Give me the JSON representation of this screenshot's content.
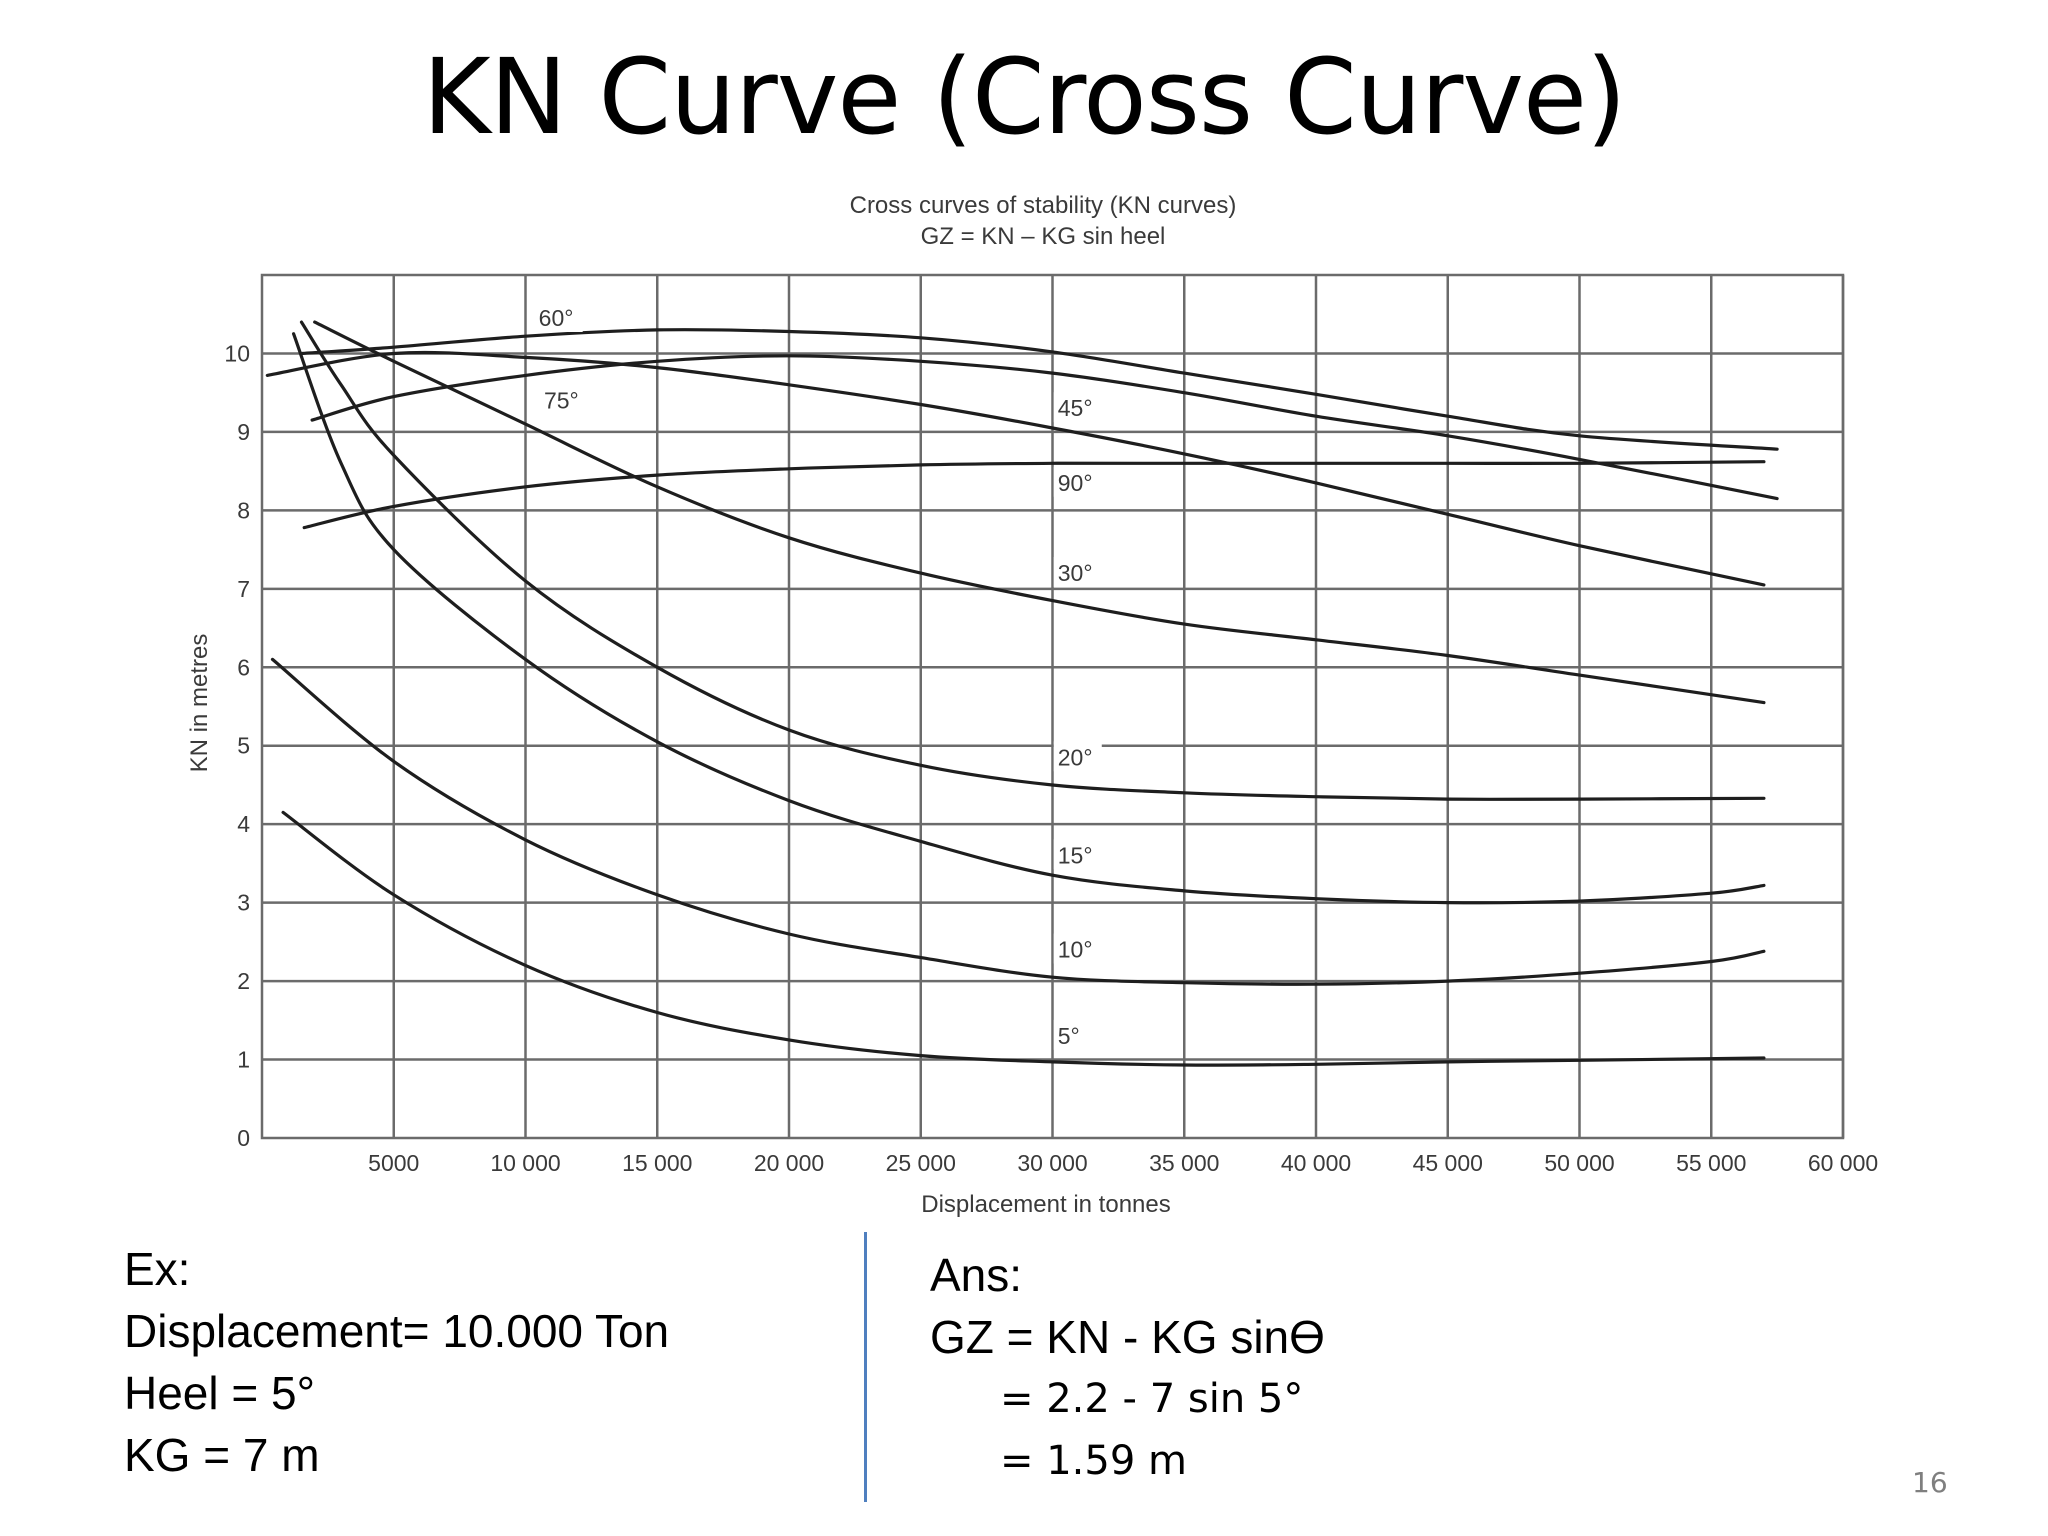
{
  "slide": {
    "title": "KN Curve (Cross Curve)",
    "page_number": "16"
  },
  "example": {
    "heading": "Ex:",
    "lines": [
      "Displacement= 10.000 Ton",
      "Heel = 5°",
      "KG = 7 m"
    ]
  },
  "answer": {
    "heading": "Ans:",
    "formula": "GZ = KN - KG sinϴ",
    "steps": [
      "= 2.2 - 7 sin 5°",
      "= 1.59 m"
    ]
  },
  "colors": {
    "grid": "#6b6b6b",
    "curve": "#1e1e1e",
    "text": "#3a3a3a",
    "divider": "#4f7fbf"
  },
  "chart_data": {
    "type": "line",
    "title": "Cross curves of stability (KN curves)",
    "subtitle": "GZ = KN – KG sin heel",
    "xlabel": "Displacement in tonnes",
    "ylabel": "KN in metres",
    "xlim": [
      0,
      60000
    ],
    "ylim": [
      0,
      11
    ],
    "x_ticks": [
      5000,
      10000,
      15000,
      20000,
      25000,
      30000,
      35000,
      40000,
      45000,
      50000,
      55000,
      60000
    ],
    "x_tick_labels": [
      "5000",
      "10 000",
      "15 000",
      "20 000",
      "25 000",
      "30 000",
      "35 000",
      "40 000",
      "45 000",
      "50 000",
      "55 000",
      "60 000"
    ],
    "y_ticks": [
      0,
      1,
      2,
      3,
      4,
      5,
      6,
      7,
      8,
      9,
      10
    ],
    "y_tick_labels": [
      "0",
      "1",
      "2",
      "3",
      "4",
      "5",
      "6",
      "7",
      "8",
      "9",
      "10"
    ],
    "grid": true,
    "series": [
      {
        "name": "5°",
        "label_at": [
          30200,
          1.2
        ],
        "points": [
          [
            800,
            4.15
          ],
          [
            5000,
            3.1
          ],
          [
            10000,
            2.2
          ],
          [
            15000,
            1.6
          ],
          [
            20000,
            1.25
          ],
          [
            25000,
            1.05
          ],
          [
            30000,
            0.97
          ],
          [
            35000,
            0.93
          ],
          [
            40000,
            0.94
          ],
          [
            45000,
            0.97
          ],
          [
            50000,
            0.99
          ],
          [
            57000,
            1.02
          ]
        ]
      },
      {
        "name": "10°",
        "label_at": [
          30200,
          2.3
        ],
        "points": [
          [
            400,
            6.1
          ],
          [
            5000,
            4.8
          ],
          [
            10000,
            3.8
          ],
          [
            15000,
            3.1
          ],
          [
            20000,
            2.6
          ],
          [
            25000,
            2.3
          ],
          [
            30000,
            2.05
          ],
          [
            35000,
            1.98
          ],
          [
            40000,
            1.96
          ],
          [
            45000,
            2.0
          ],
          [
            50000,
            2.1
          ],
          [
            55000,
            2.25
          ],
          [
            57000,
            2.38
          ]
        ]
      },
      {
        "name": "15°",
        "label_at": [
          30200,
          3.5
        ],
        "points": [
          [
            1200,
            10.25
          ],
          [
            3000,
            8.6
          ],
          [
            5000,
            7.5
          ],
          [
            10000,
            6.1
          ],
          [
            15000,
            5.05
          ],
          [
            20000,
            4.3
          ],
          [
            25000,
            3.78
          ],
          [
            30000,
            3.35
          ],
          [
            35000,
            3.15
          ],
          [
            40000,
            3.05
          ],
          [
            45000,
            3.0
          ],
          [
            50000,
            3.02
          ],
          [
            55000,
            3.12
          ],
          [
            57000,
            3.22
          ]
        ]
      },
      {
        "name": "20°",
        "label_at": [
          30200,
          4.75
        ],
        "points": [
          [
            1500,
            10.4
          ],
          [
            3000,
            9.6
          ],
          [
            5000,
            8.7
          ],
          [
            10000,
            7.1
          ],
          [
            15000,
            6.0
          ],
          [
            20000,
            5.2
          ],
          [
            25000,
            4.75
          ],
          [
            30000,
            4.5
          ],
          [
            35000,
            4.4
          ],
          [
            40000,
            4.35
          ],
          [
            45000,
            4.32
          ],
          [
            50000,
            4.32
          ],
          [
            57000,
            4.33
          ]
        ]
      },
      {
        "name": "30°",
        "label_at": [
          30200,
          7.1
        ],
        "points": [
          [
            2000,
            10.4
          ],
          [
            5000,
            9.9
          ],
          [
            10000,
            9.1
          ],
          [
            15000,
            8.3
          ],
          [
            20000,
            7.65
          ],
          [
            25000,
            7.2
          ],
          [
            30000,
            6.85
          ],
          [
            35000,
            6.55
          ],
          [
            40000,
            6.35
          ],
          [
            45000,
            6.15
          ],
          [
            50000,
            5.9
          ],
          [
            57000,
            5.55
          ]
        ]
      },
      {
        "name": "45°",
        "label_at": [
          30200,
          9.2
        ],
        "points": [
          [
            200,
            9.72
          ],
          [
            5000,
            10.0
          ],
          [
            10000,
            9.95
          ],
          [
            15000,
            9.82
          ],
          [
            20000,
            9.6
          ],
          [
            25000,
            9.35
          ],
          [
            30000,
            9.05
          ],
          [
            35000,
            8.72
          ],
          [
            40000,
            8.35
          ],
          [
            45000,
            7.95
          ],
          [
            50000,
            7.55
          ],
          [
            57000,
            7.05
          ]
        ]
      },
      {
        "name": "60°",
        "label_at": [
          10500,
          10.35
        ],
        "points": [
          [
            1500,
            10.0
          ],
          [
            5000,
            10.08
          ],
          [
            10000,
            10.22
          ],
          [
            15000,
            10.3
          ],
          [
            20000,
            10.28
          ],
          [
            25000,
            10.2
          ],
          [
            30000,
            10.02
          ],
          [
            35000,
            9.75
          ],
          [
            40000,
            9.48
          ],
          [
            45000,
            9.2
          ],
          [
            50000,
            8.95
          ],
          [
            57500,
            8.78
          ]
        ]
      },
      {
        "name": "75°",
        "label_at": [
          10700,
          9.3
        ],
        "points": [
          [
            1900,
            9.15
          ],
          [
            5000,
            9.45
          ],
          [
            10000,
            9.72
          ],
          [
            15000,
            9.9
          ],
          [
            20000,
            9.97
          ],
          [
            25000,
            9.9
          ],
          [
            30000,
            9.75
          ],
          [
            35000,
            9.5
          ],
          [
            40000,
            9.2
          ],
          [
            45000,
            8.95
          ],
          [
            50000,
            8.65
          ],
          [
            57500,
            8.15
          ]
        ]
      },
      {
        "name": "90°",
        "label_at": [
          30200,
          8.25
        ],
        "points": [
          [
            1600,
            7.78
          ],
          [
            5000,
            8.05
          ],
          [
            10000,
            8.3
          ],
          [
            15000,
            8.45
          ],
          [
            20000,
            8.53
          ],
          [
            25000,
            8.58
          ],
          [
            30000,
            8.6
          ],
          [
            35000,
            8.6
          ],
          [
            40000,
            8.6
          ],
          [
            45000,
            8.6
          ],
          [
            50000,
            8.6
          ],
          [
            57000,
            8.62
          ]
        ]
      }
    ]
  }
}
